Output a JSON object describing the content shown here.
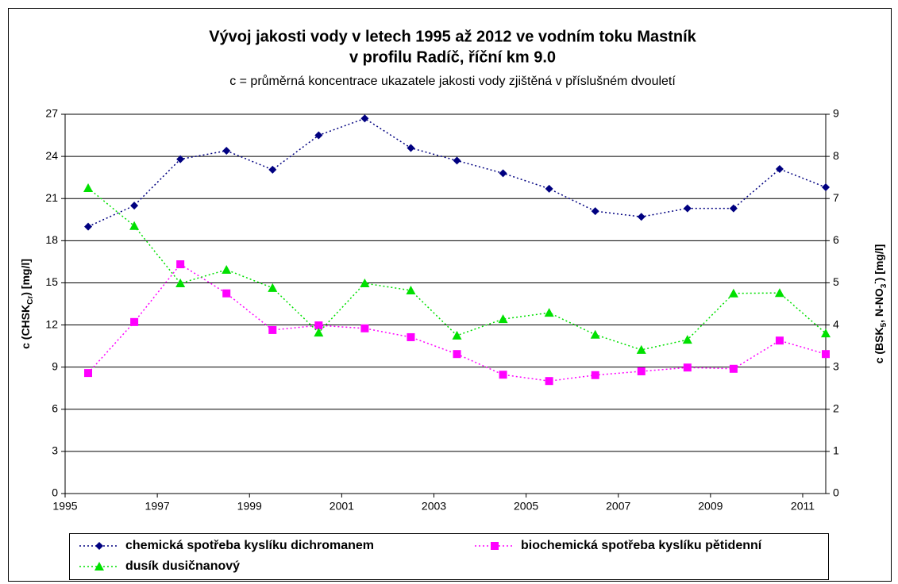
{
  "chart_data": {
    "type": "line",
    "title": [
      "Vývoj jakosti vody v letech 1995 až 2012 ve vodním toku Mastník",
      "v profilu Radíč, říční km 9.0"
    ],
    "subtitle": "c = průměrná koncentrace ukazatele jakosti vody zjištěná v příslušném dvouletí",
    "ylabel": [
      "c (CHSK",
      "Cr",
      ") [mg/l]"
    ],
    "y2label": [
      "c (BSK",
      "5",
      ", N-NO",
      "3",
      "-",
      ") [mg/l]"
    ],
    "x": [
      1995.5,
      1996.5,
      1997.5,
      1998.5,
      1999.5,
      2000.5,
      2001.5,
      2002.5,
      2003.5,
      2004.5,
      2005.5,
      2006.5,
      2007.5,
      2008.5,
      2009.5,
      2010.5,
      2011.5
    ],
    "xlim": [
      1995,
      2011.5
    ],
    "xticks": [
      1995,
      1997,
      1999,
      2001,
      2003,
      2005,
      2007,
      2009,
      2011
    ],
    "ylim": [
      0,
      27
    ],
    "yticks": [
      0,
      3,
      6,
      9,
      12,
      15,
      18,
      21,
      24,
      27
    ],
    "y2lim": [
      0,
      9
    ],
    "y2ticks": [
      0,
      1,
      2,
      3,
      4,
      5,
      6,
      7,
      8,
      9
    ],
    "grid": true,
    "series": [
      {
        "name": "chemická spotřeba kyslíku dichromanem",
        "color": "#000080",
        "marker": "diamond",
        "values": [
          19.0,
          20.5,
          23.8,
          24.4,
          23.05,
          25.5,
          26.7,
          24.6,
          23.7,
          22.8,
          21.7,
          20.1,
          19.7,
          20.3,
          20.3,
          23.1,
          21.8
        ]
      },
      {
        "name": "biochemická spotřeba kyslíku pětidenní",
        "color": "#ff00ff",
        "marker": "square",
        "axis": "y2",
        "values": [
          2.86,
          4.07,
          5.44,
          4.75,
          3.88,
          3.99,
          3.92,
          3.71,
          3.31,
          2.82,
          2.67,
          2.81,
          2.9,
          2.99,
          2.96,
          3.63,
          3.31
        ]
      },
      {
        "name": "dusík dusičnanový",
        "color": "#00e000",
        "marker": "triangle",
        "axis": "y2",
        "values": [
          7.25,
          6.35,
          4.99,
          5.31,
          4.88,
          3.82,
          4.99,
          4.82,
          3.75,
          4.14,
          4.29,
          3.77,
          3.41,
          3.65,
          4.75,
          4.76,
          3.8
        ]
      }
    ]
  }
}
